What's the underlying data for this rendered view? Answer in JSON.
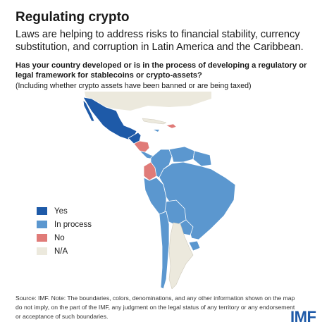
{
  "header": {
    "title": "Regulating crypto",
    "subtitle": "Laws are helping to address risks to financial stability, currency substitution, and corruption in Latin America and the Caribbean."
  },
  "question": {
    "text": "Has your country developed or is in the process of developing a regulatory or legal framework for stablecoins or crypto-assets?",
    "note": "(Including whether crypto assets have been banned or are being taxed)"
  },
  "legend": [
    {
      "label": "Yes",
      "color": "#1e5aa8"
    },
    {
      "label": "In process",
      "color": "#5b97cf"
    },
    {
      "label": "No",
      "color": "#e07b78"
    },
    {
      "label": "N/A",
      "color": "#ece9dd"
    }
  ],
  "colors": {
    "yes": "#1e5aa8",
    "in_process": "#5b97cf",
    "no": "#e07b78",
    "na": "#ece9dd",
    "ocean": "#ffffff"
  },
  "source": "Source: IMF. Note: The boundaries, colors, denominations, and any other information shown on the map do not imply, on the part of the IMF, any judgment on the legal status of any territory or any endorsement or acceptance of such boundaries.",
  "logo": "IMF"
}
